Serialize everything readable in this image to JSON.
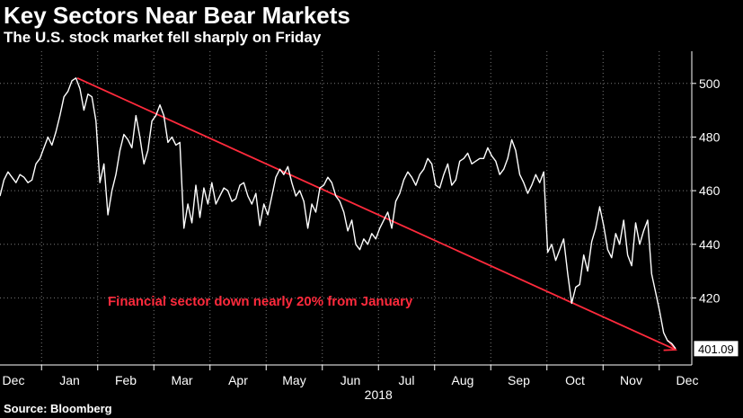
{
  "header": {
    "title": "Key Sectors Near Bear Markets",
    "subtitle": "The U.S. stock market fell sharply on Friday"
  },
  "footer": {
    "source": "Source: Bloomberg"
  },
  "colors": {
    "background": "#000000",
    "line": "#ffffff",
    "trend": "#ff2a3c",
    "axis": "#ffffff"
  },
  "chart_data": {
    "type": "line",
    "title": "Key Sectors Near Bear Markets",
    "subtitle": "The U.S. stock market fell sharply on Friday",
    "xlabel": "2018",
    "ylabel": "",
    "x_tick_labels": [
      "Dec",
      "Jan",
      "Feb",
      "Mar",
      "Apr",
      "May",
      "Jun",
      "Jul",
      "Aug",
      "Sep",
      "Oct",
      "Nov",
      "Dec"
    ],
    "x_tick_year": "2018",
    "y_ticks": [
      420,
      440,
      460,
      480,
      500
    ],
    "ylim": [
      395,
      512
    ],
    "y_axis_position": "right",
    "grid": true,
    "last_value_label": "401.09",
    "series": [
      {
        "values": [
          458,
          464,
          467,
          465,
          463,
          466,
          465,
          463,
          464,
          470,
          472,
          476,
          480,
          477,
          482,
          488,
          495,
          497,
          501,
          502,
          498,
          490,
          496,
          495,
          486,
          463,
          470,
          451,
          460,
          466,
          475,
          481,
          479,
          476,
          488,
          480,
          470,
          475,
          486,
          488,
          492,
          488,
          478,
          480,
          477,
          478,
          446,
          455,
          448,
          462,
          450,
          461,
          455,
          463,
          455,
          458,
          461,
          460,
          456,
          457,
          462,
          463,
          458,
          455,
          459,
          447,
          455,
          451,
          458,
          465,
          468,
          466,
          469,
          463,
          458,
          460,
          456,
          446,
          455,
          452,
          461,
          462,
          465,
          463,
          458,
          456,
          452,
          445,
          449,
          440,
          438,
          442,
          440,
          444,
          442,
          446,
          449,
          452,
          446,
          456,
          459,
          464,
          467,
          465,
          462,
          466,
          468,
          472,
          470,
          462,
          461,
          466,
          470,
          462,
          464,
          471,
          472,
          474,
          470,
          471,
          472,
          472,
          476,
          473,
          471,
          466,
          468,
          472,
          479,
          475,
          466,
          463,
          459,
          462,
          466,
          463,
          467,
          437,
          440,
          434,
          438,
          442,
          429,
          418,
          424,
          425,
          436,
          430,
          441,
          446,
          454,
          447,
          438,
          435,
          444,
          440,
          449,
          436,
          432,
          448,
          440,
          445,
          449,
          429,
          422,
          415,
          407,
          404,
          403,
          401.09
        ]
      }
    ],
    "trendline": {
      "start": 502,
      "end": 401,
      "color": "#ff2a3c"
    },
    "annotation": "Financial sector down nearly 20% from January"
  }
}
